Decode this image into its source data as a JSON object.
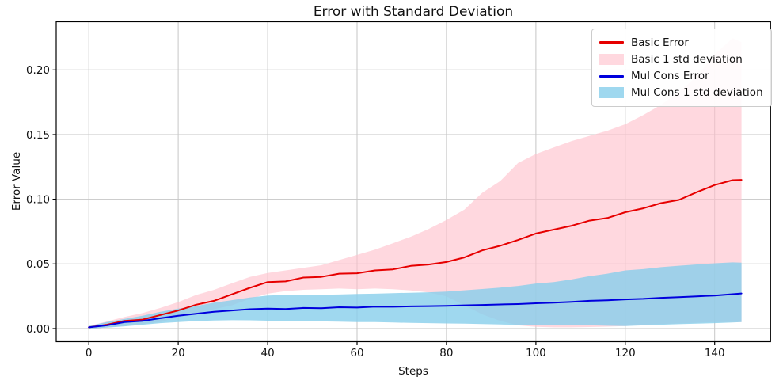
{
  "style": {
    "background": "#ffffff",
    "grid_color": "#c6c6c6",
    "spine_color": "#000000",
    "tick_color": "#000000",
    "legend_border_color": "#cccccc"
  },
  "legend": {
    "position": "upper right",
    "items": [
      {
        "label": "Basic Error",
        "swatch": "line",
        "color": "#e60000"
      },
      {
        "label": "Basic 1 std deviation",
        "swatch": "patch",
        "color": "rgba(255,192,203,0.62)"
      },
      {
        "label": "Mul Cons Error",
        "swatch": "line",
        "color": "#0000dd"
      },
      {
        "label": "Mul Cons 1 std deviation",
        "swatch": "patch",
        "color": "rgba(135,206,235,0.8)"
      }
    ]
  },
  "chart_data": {
    "type": "line",
    "title": "Error with Standard Deviation",
    "xlabel": "Steps",
    "ylabel": "Error Value",
    "xlim": [
      -7.3,
      152.5
    ],
    "ylim": [
      -0.0101,
      0.2372
    ],
    "xticks": [
      0,
      20,
      40,
      60,
      80,
      100,
      120,
      140
    ],
    "xtick_labels": [
      "0",
      "20",
      "40",
      "60",
      "80",
      "100",
      "120",
      "140"
    ],
    "yticks": [
      0.0,
      0.05,
      0.1,
      0.15,
      0.2
    ],
    "ytick_labels": [
      "0.00",
      "0.05",
      "0.10",
      "0.15",
      "0.20"
    ],
    "grid": true,
    "legend_position": "upper right",
    "x": [
      0,
      4,
      8,
      12,
      16,
      20,
      24,
      28,
      32,
      36,
      40,
      44,
      48,
      52,
      56,
      60,
      64,
      68,
      72,
      76,
      80,
      84,
      88,
      92,
      96,
      100,
      104,
      108,
      112,
      116,
      120,
      124,
      128,
      132,
      136,
      140,
      144,
      146
    ],
    "series": [
      {
        "name": "Basic Error",
        "type": "line",
        "color": "#e60000",
        "values": [
          0.001,
          0.003,
          0.006,
          0.007,
          0.0105,
          0.014,
          0.0185,
          0.0215,
          0.0265,
          0.0315,
          0.036,
          0.0365,
          0.0395,
          0.04,
          0.0425,
          0.0428,
          0.045,
          0.0458,
          0.0485,
          0.0495,
          0.0515,
          0.055,
          0.0605,
          0.064,
          0.0685,
          0.0735,
          0.0765,
          0.0795,
          0.0835,
          0.0855,
          0.09,
          0.093,
          0.097,
          0.0995,
          0.1055,
          0.111,
          0.1148,
          0.115
        ]
      },
      {
        "name": "Mul Cons Error",
        "type": "line",
        "color": "#0000dd",
        "values": [
          0.001,
          0.0025,
          0.005,
          0.006,
          0.008,
          0.01,
          0.0115,
          0.013,
          0.014,
          0.015,
          0.0155,
          0.0152,
          0.016,
          0.0158,
          0.0165,
          0.0163,
          0.017,
          0.0169,
          0.0172,
          0.0174,
          0.0176,
          0.018,
          0.0183,
          0.0187,
          0.019,
          0.0196,
          0.02,
          0.0206,
          0.0215,
          0.0219,
          0.0226,
          0.023,
          0.0238,
          0.0243,
          0.025,
          0.0256,
          0.0266,
          0.0272
        ]
      }
    ],
    "bands": [
      {
        "name": "Basic 1 std deviation",
        "color": "rgba(255,192,203,0.62)",
        "upper": [
          0.002,
          0.0055,
          0.009,
          0.012,
          0.016,
          0.0205,
          0.026,
          0.03,
          0.035,
          0.04,
          0.043,
          0.045,
          0.047,
          0.049,
          0.053,
          0.057,
          0.061,
          0.066,
          0.071,
          0.077,
          0.084,
          0.092,
          0.105,
          0.114,
          0.128,
          0.135,
          0.14,
          0.145,
          0.149,
          0.153,
          0.158,
          0.165,
          0.173,
          0.183,
          0.195,
          0.212,
          0.2245,
          0.2215
        ],
        "lower": [
          0.0,
          0.0008,
          0.002,
          0.0035,
          0.005,
          0.009,
          0.012,
          0.015,
          0.018,
          0.023,
          0.027,
          0.029,
          0.03,
          0.0305,
          0.031,
          0.0305,
          0.031,
          0.0305,
          0.0295,
          0.028,
          0.025,
          0.018,
          0.011,
          0.006,
          0.0025,
          0.0014,
          0.001,
          0.001,
          0.0012,
          0.0015,
          0.002,
          0.003,
          0.0035,
          0.004,
          0.0045,
          0.005,
          0.005,
          0.005
        ]
      },
      {
        "name": "Mul Cons 1 std deviation",
        "color": "rgba(135,206,235,0.8)",
        "upper": [
          0.002,
          0.005,
          0.0075,
          0.01,
          0.013,
          0.0155,
          0.0175,
          0.02,
          0.022,
          0.024,
          0.0255,
          0.026,
          0.0258,
          0.0262,
          0.0264,
          0.0268,
          0.027,
          0.0274,
          0.0277,
          0.0281,
          0.0286,
          0.0296,
          0.0306,
          0.0317,
          0.033,
          0.0348,
          0.036,
          0.038,
          0.0405,
          0.0425,
          0.045,
          0.046,
          0.0475,
          0.0486,
          0.0496,
          0.0505,
          0.0512,
          0.051
        ],
        "lower": [
          0.0,
          0.0008,
          0.0018,
          0.003,
          0.0042,
          0.005,
          0.0058,
          0.0063,
          0.0065,
          0.0064,
          0.0061,
          0.006,
          0.0058,
          0.0056,
          0.0053,
          0.0051,
          0.005,
          0.0047,
          0.0044,
          0.0042,
          0.004,
          0.0038,
          0.0035,
          0.0032,
          0.003,
          0.003,
          0.0028,
          0.0026,
          0.0025,
          0.0022,
          0.002,
          0.0025,
          0.003,
          0.0034,
          0.0038,
          0.0042,
          0.0048,
          0.005
        ]
      }
    ]
  }
}
